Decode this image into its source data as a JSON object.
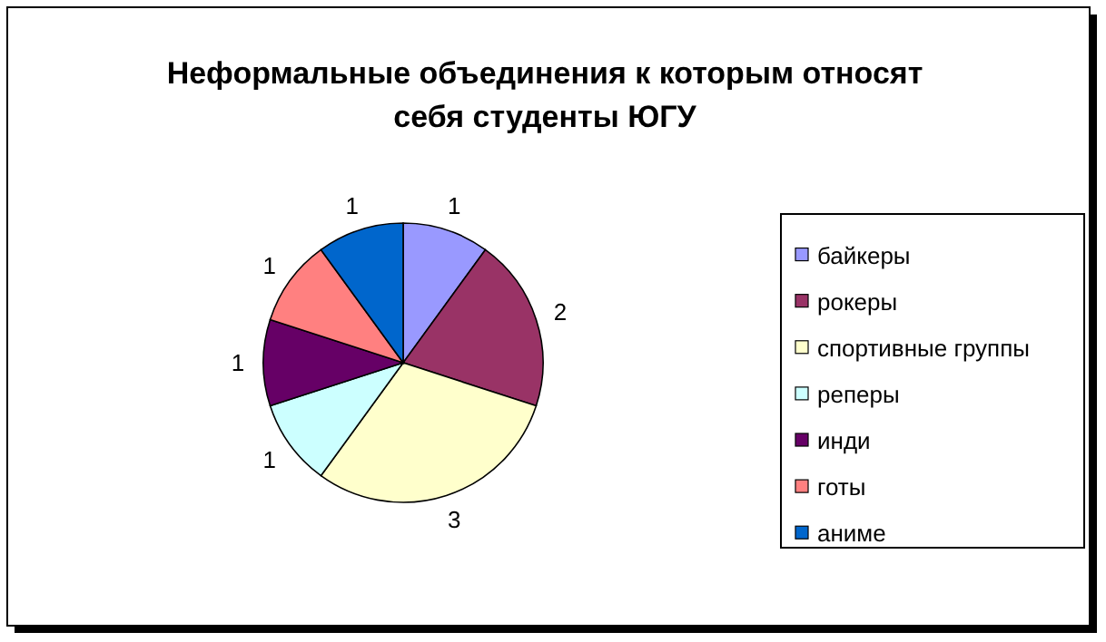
{
  "chart_data": {
    "type": "pie",
    "title": "Неформальные объединения к которым относят себя студенты ЮГУ",
    "categories": [
      "байкеры",
      "рокеры",
      "спортивные группы",
      "реперы",
      "инди",
      "готы",
      "аниме"
    ],
    "values": [
      1,
      2,
      3,
      1,
      1,
      1,
      1
    ],
    "colors": [
      "#9999ff",
      "#993366",
      "#ffffcc",
      "#ccffff",
      "#660066",
      "#ff8080",
      "#0066cc"
    ],
    "data_labels": true,
    "legend": "right"
  }
}
